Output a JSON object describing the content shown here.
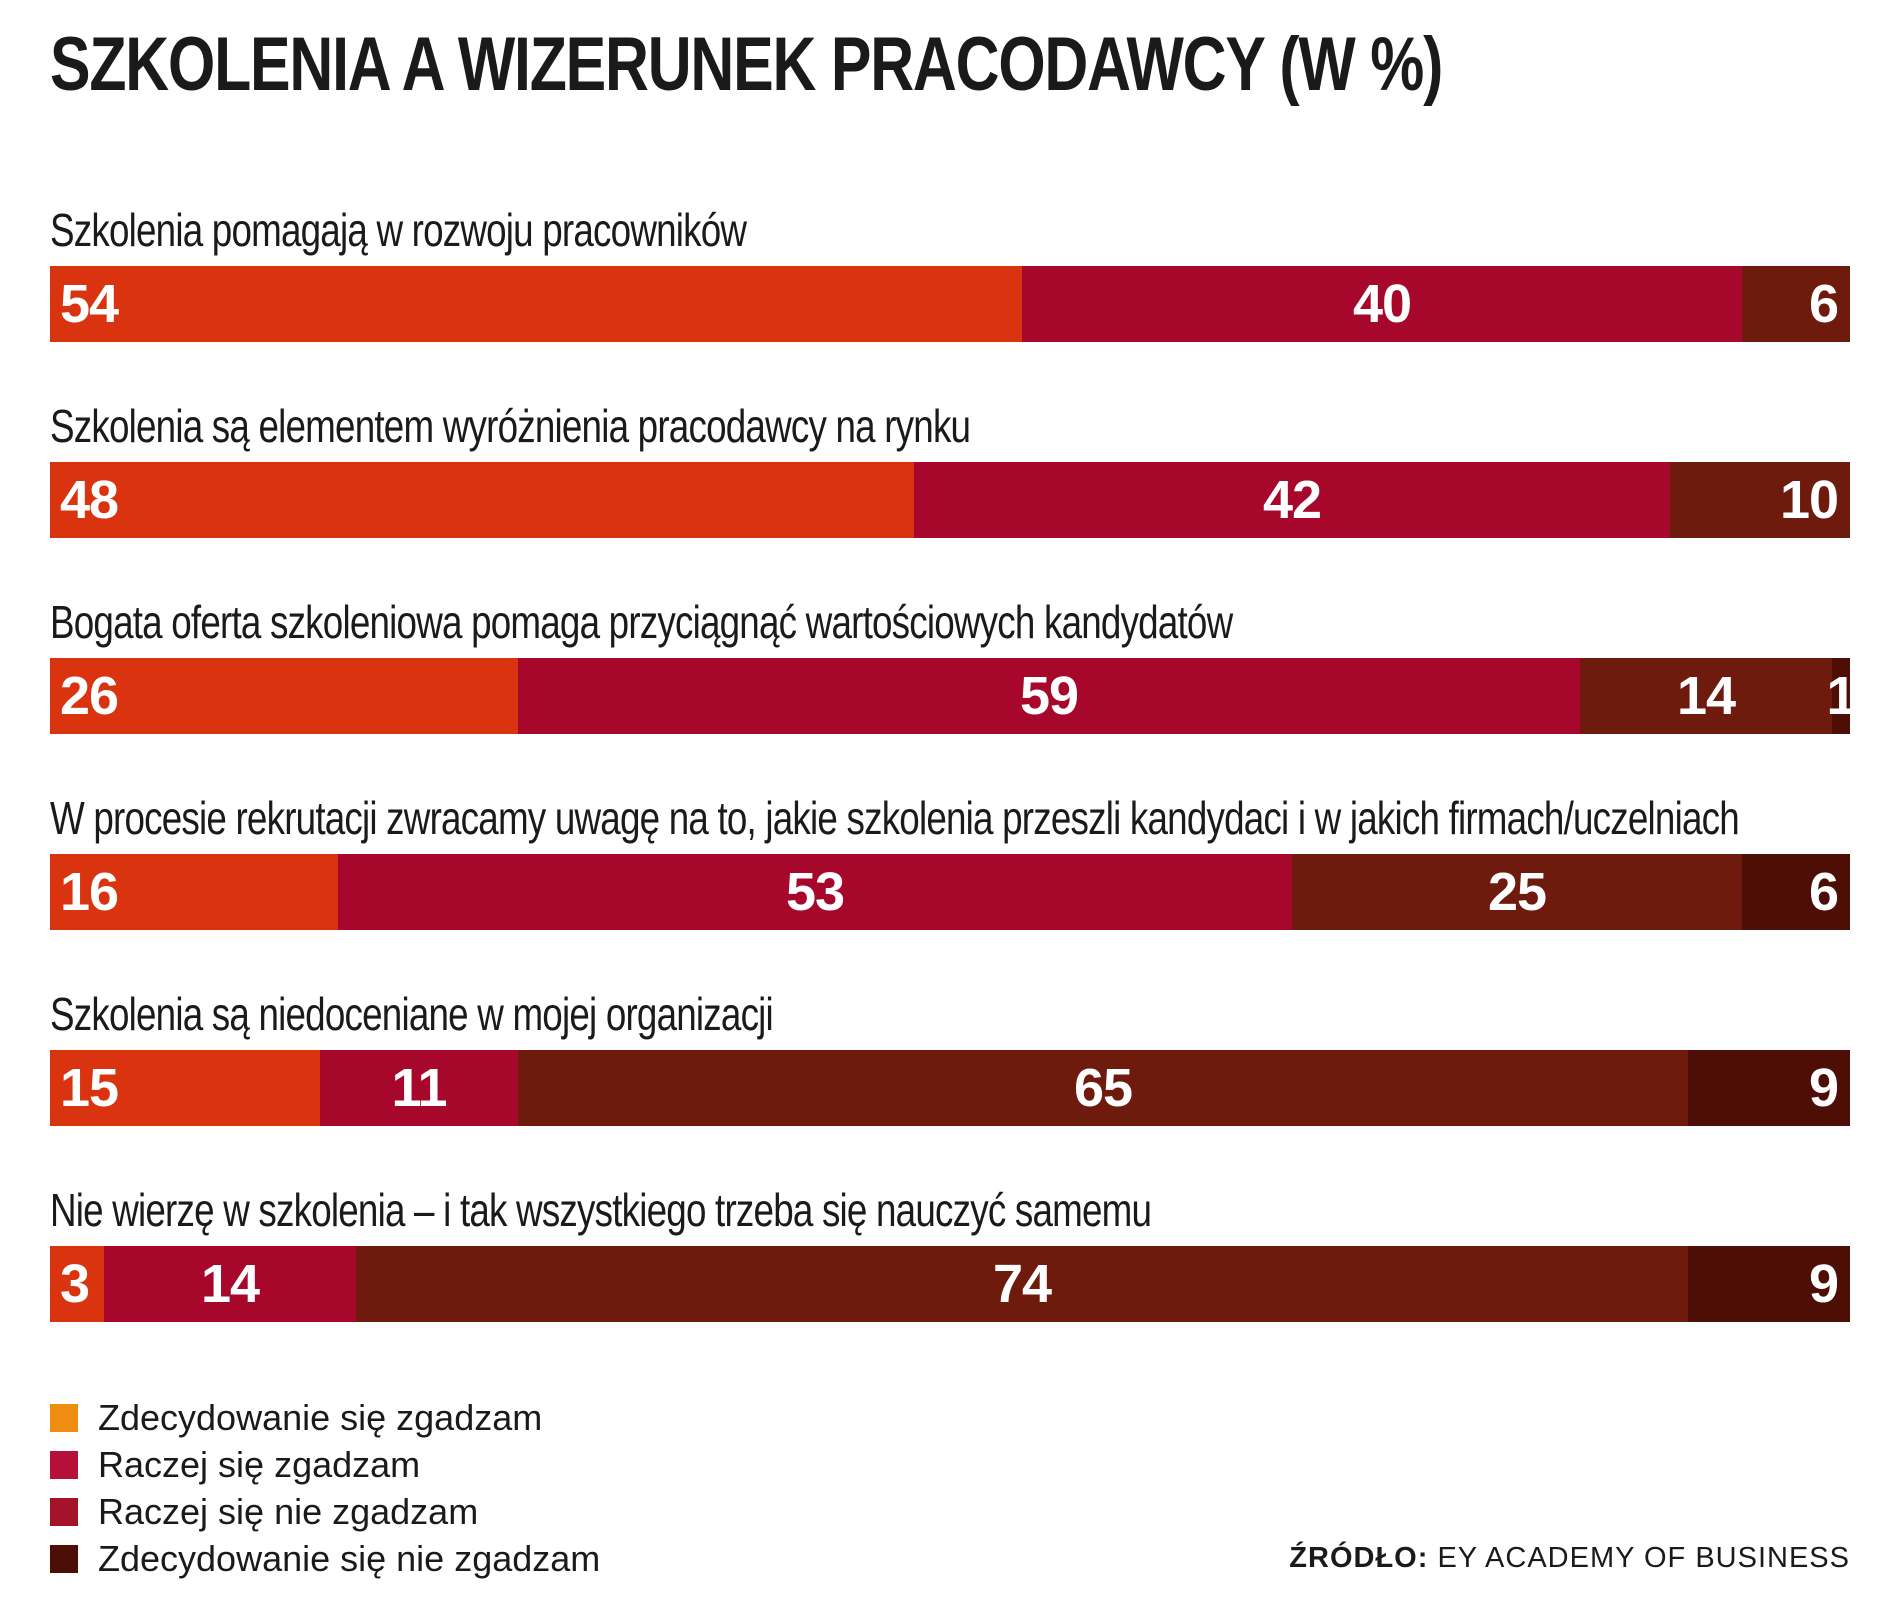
{
  "chart_data": {
    "type": "bar",
    "orientation": "horizontal-stacked",
    "title": "SZKOLENIA A WIZERUNEK PRACODAWCY (W %)",
    "xlim": [
      0,
      100
    ],
    "grid": false,
    "legend_position": "bottom-left",
    "categories": [
      "Szkolenia pomagają w rozwoju pracowników",
      "Szkolenia są elementem wyróżnienia pracodawcy na rynku",
      "Bogata oferta szkoleniowa pomaga przyciągnąć wartościowych kandydatów",
      "W procesie rekrutacji zwracamy uwagę na to, jakie szkolenia przeszli kandydaci i w jakich firmach/uczelniach",
      "Szkolenia są niedoceniane w mojej organizacji",
      "Nie wierzę w szkolenia – i tak wszystkiego trzeba się nauczyć samemu"
    ],
    "series": [
      {
        "name": "Zdecydowanie się zgadzam",
        "color": "#d9330f",
        "legend_color": "#ef8c12",
        "values": [
          54,
          48,
          26,
          16,
          15,
          3
        ]
      },
      {
        "name": "Raczej się zgadzam",
        "color": "#a8072c",
        "legend_color": "#b5103a",
        "values": [
          40,
          42,
          59,
          53,
          11,
          14
        ]
      },
      {
        "name": "Raczej się nie zgadzam",
        "color": "#6e1a0c",
        "legend_color": "#a3132a",
        "values": [
          6,
          10,
          14,
          25,
          65,
          74
        ]
      },
      {
        "name": "Zdecydowanie się nie zgadzam",
        "color": "#4d0e06",
        "legend_color": "#4d0e06",
        "values": [
          0,
          0,
          1,
          6,
          9,
          9
        ]
      }
    ]
  },
  "source": {
    "key": "ŹRÓDŁO:",
    "value": "EY ACADEMY OF BUSINESS"
  }
}
